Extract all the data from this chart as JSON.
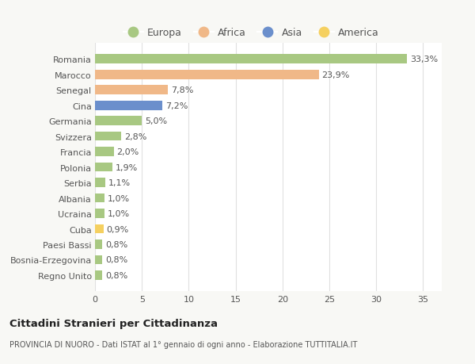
{
  "categories": [
    "Romania",
    "Marocco",
    "Senegal",
    "Cina",
    "Germania",
    "Svizzera",
    "Francia",
    "Polonia",
    "Serbia",
    "Albania",
    "Ucraina",
    "Cuba",
    "Paesi Bassi",
    "Bosnia-Erzegovina",
    "Regno Unito"
  ],
  "values": [
    33.3,
    23.9,
    7.8,
    7.2,
    5.0,
    2.8,
    2.0,
    1.9,
    1.1,
    1.0,
    1.0,
    0.9,
    0.8,
    0.8,
    0.8
  ],
  "colors": [
    "#a8c882",
    "#f0b888",
    "#f0b888",
    "#6b8fcc",
    "#a8c882",
    "#a8c882",
    "#a8c882",
    "#a8c882",
    "#a8c882",
    "#a8c882",
    "#a8c882",
    "#f5d060",
    "#a8c882",
    "#a8c882",
    "#a8c882"
  ],
  "labels": [
    "33,3%",
    "23,9%",
    "7,8%",
    "7,2%",
    "5,0%",
    "2,8%",
    "2,0%",
    "1,9%",
    "1,1%",
    "1,0%",
    "1,0%",
    "0,9%",
    "0,8%",
    "0,8%",
    "0,8%"
  ],
  "legend_labels": [
    "Europa",
    "Africa",
    "Asia",
    "America"
  ],
  "legend_colors": [
    "#a8c882",
    "#f0b888",
    "#6b8fcc",
    "#f5d060"
  ],
  "xlim": [
    0,
    37
  ],
  "xticks": [
    0,
    5,
    10,
    15,
    20,
    25,
    30,
    35
  ],
  "title": "Cittadini Stranieri per Cittadinanza",
  "subtitle": "PROVINCIA DI NUORO - Dati ISTAT al 1° gennaio di ogni anno - Elaborazione TUTTITALIA.IT",
  "background_color": "#f8f8f5",
  "plot_bg_color": "#ffffff",
  "bar_height": 0.6,
  "grid_color": "#e0e0e0",
  "text_color": "#555555",
  "label_fontsize": 8,
  "tick_fontsize": 8
}
